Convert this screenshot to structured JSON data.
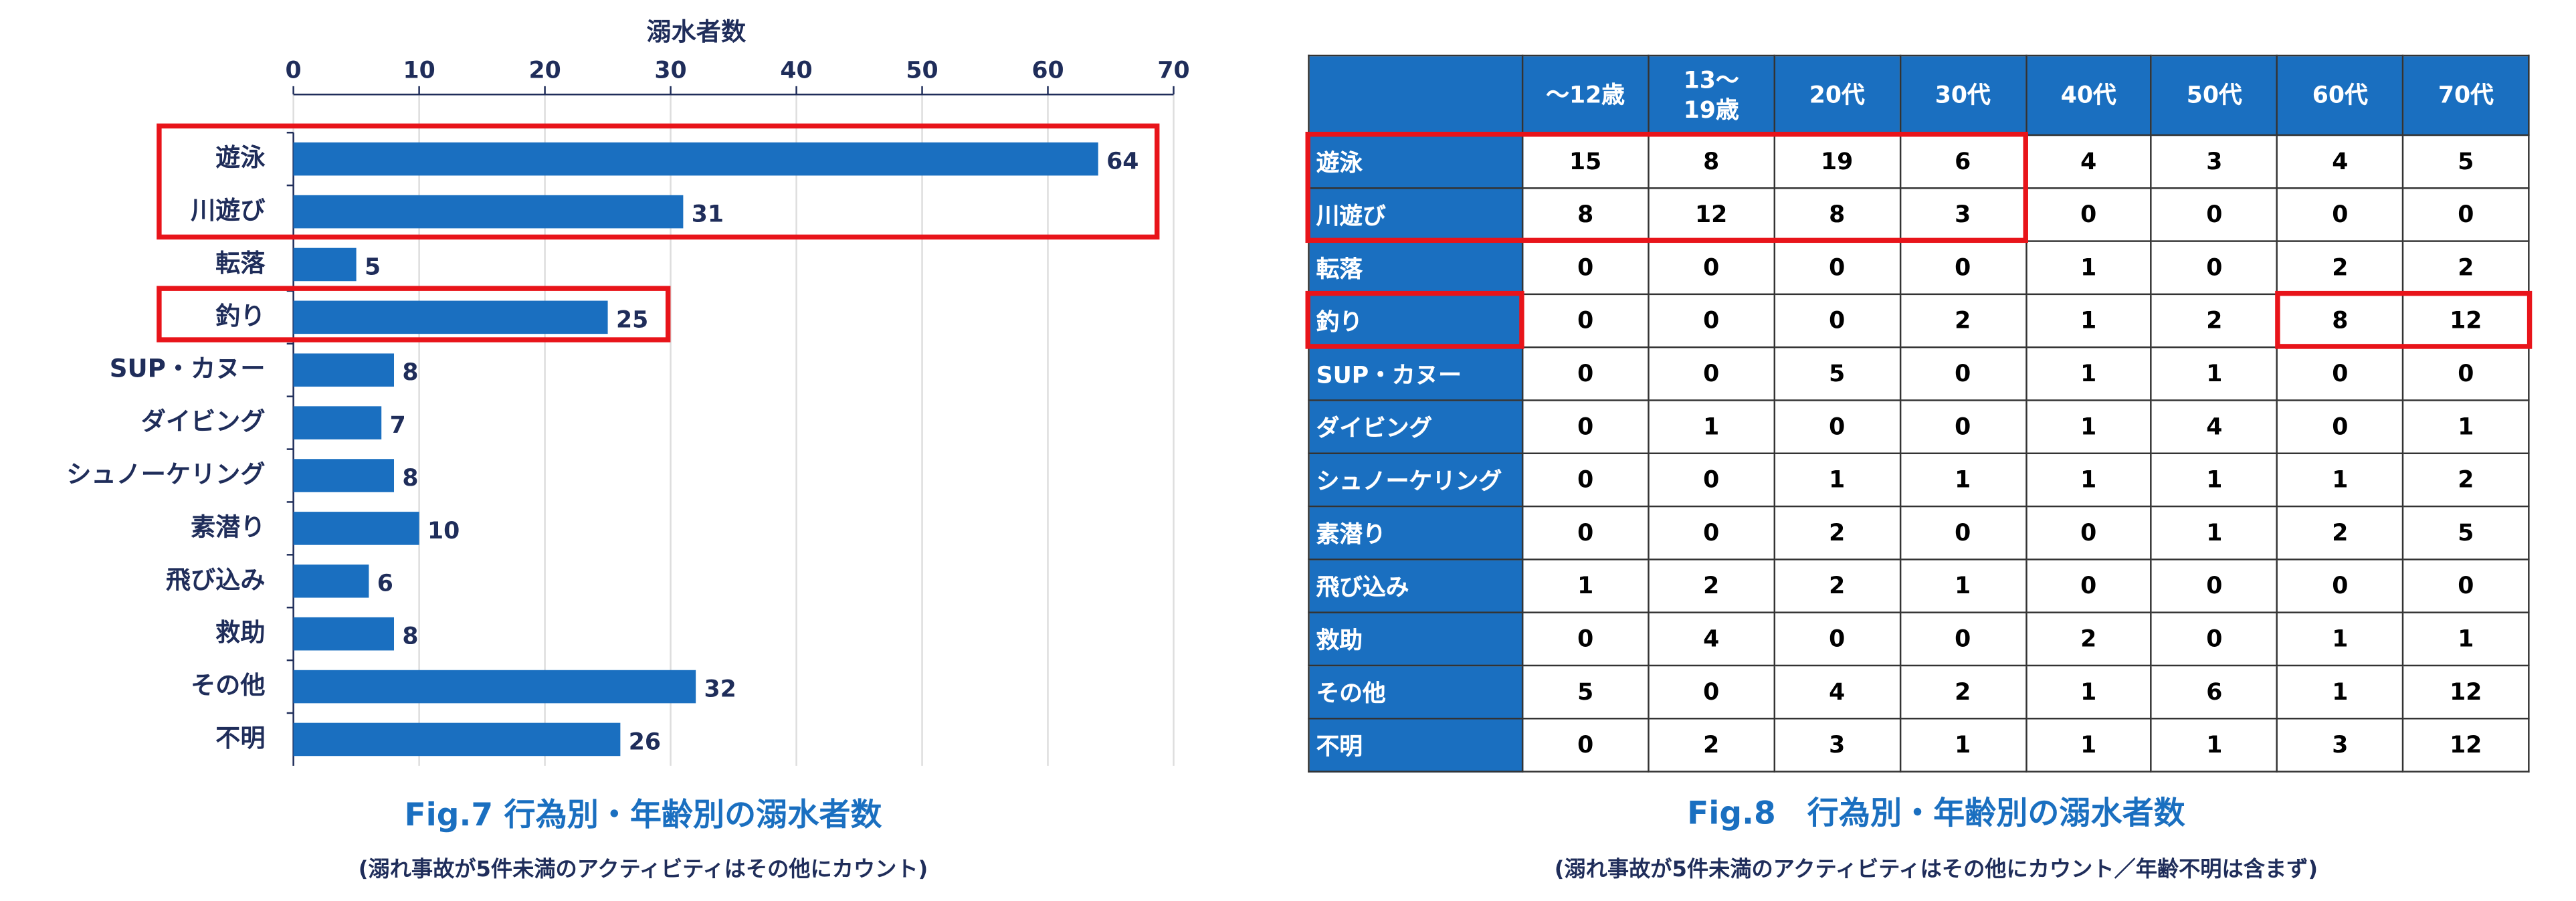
{
  "chart_data": {
    "type": "hbar",
    "x_label": "溺水者数",
    "title": "Fig.7 行為別・年齢別の溺水者数",
    "subtitle": "(溺れ事故が5件未満のアクティビティはその他にカウント)",
    "categories": [
      "遊泳",
      "川遊び",
      "転落",
      "釣り",
      "SUP・カヌー",
      "ダイビング",
      "シュノーケリング",
      "素潜り",
      "飛び込み",
      "救助",
      "その他",
      "不明"
    ],
    "values": [
      64,
      31,
      5,
      25,
      8,
      7,
      8,
      10,
      6,
      8,
      32,
      26
    ],
    "color": "#1a6fc0",
    "xlim": [
      0,
      70
    ],
    "xticks": [
      0,
      10,
      20,
      30,
      40,
      50,
      60,
      70
    ],
    "grid": true
  },
  "table": {
    "title": "Fig.8　行為別・年齢別の溺水者数",
    "subtitle": "(溺れ事故が5件未満のアクティビティはその他にカウント／年齢不明は含まず)",
    "columns": [
      "～12歳",
      "13～\n19歳",
      "20代",
      "30代",
      "40代",
      "50代",
      "60代",
      "70代"
    ],
    "rows": [
      [
        "遊泳",
        15,
        8,
        19,
        6,
        4,
        3,
        4,
        5
      ],
      [
        "川遊び",
        8,
        12,
        8,
        3,
        0,
        0,
        0,
        0
      ],
      [
        "転落",
        0,
        0,
        0,
        0,
        1,
        0,
        2,
        2
      ],
      [
        "釣り",
        0,
        0,
        0,
        2,
        1,
        2,
        8,
        12
      ],
      [
        "SUP・カヌー",
        0,
        0,
        5,
        0,
        1,
        1,
        0,
        0
      ],
      [
        "ダイビング",
        0,
        1,
        0,
        0,
        1,
        4,
        0,
        1
      ],
      [
        "シュノーケリング",
        0,
        0,
        1,
        1,
        1,
        1,
        1,
        2
      ],
      [
        "素潜り",
        0,
        0,
        2,
        0,
        0,
        1,
        2,
        5
      ],
      [
        "飛び込み",
        1,
        2,
        2,
        1,
        0,
        0,
        0,
        0
      ],
      [
        "救助",
        0,
        4,
        0,
        0,
        2,
        0,
        1,
        1
      ],
      [
        "その他",
        5,
        0,
        4,
        2,
        1,
        6,
        1,
        12
      ],
      [
        "不明",
        0,
        2,
        3,
        1,
        1,
        1,
        3,
        12
      ]
    ]
  }
}
